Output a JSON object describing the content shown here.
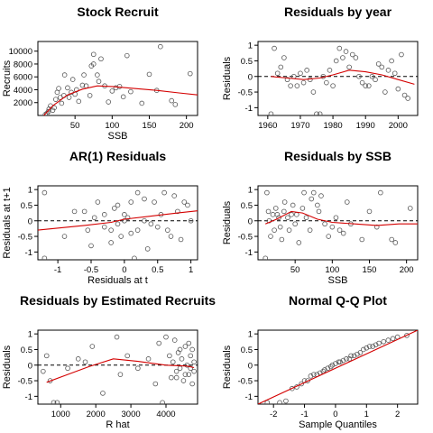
{
  "colors": {
    "points": "#555555",
    "smooth": "#d40000",
    "axis": "#000000"
  },
  "chart_data": [
    {
      "type": "scatter",
      "title": "Stock Recruit",
      "xlabel": "SSB",
      "ylabel": "Recruits",
      "xlim": [
        0,
        215
      ],
      "ylim": [
        0,
        11500
      ],
      "xticks": [
        50,
        100,
        150,
        200
      ],
      "yticks": [
        2000,
        4000,
        6000,
        8000,
        10000
      ],
      "reference_line": null,
      "points": [
        [
          10,
          150
        ],
        [
          12,
          300
        ],
        [
          14,
          600
        ],
        [
          15,
          1000
        ],
        [
          17,
          1500
        ],
        [
          20,
          800
        ],
        [
          22,
          1200
        ],
        [
          24,
          2500
        ],
        [
          26,
          3600
        ],
        [
          28,
          4200
        ],
        [
          30,
          2800
        ],
        [
          32,
          1900
        ],
        [
          35,
          3100
        ],
        [
          36,
          6300
        ],
        [
          40,
          4300
        ],
        [
          42,
          2800
        ],
        [
          45,
          3600
        ],
        [
          47,
          5600
        ],
        [
          50,
          3300
        ],
        [
          52,
          4000
        ],
        [
          55,
          2200
        ],
        [
          60,
          4700
        ],
        [
          62,
          6300
        ],
        [
          65,
          4600
        ],
        [
          70,
          3100
        ],
        [
          72,
          7700
        ],
        [
          75,
          9500
        ],
        [
          75,
          8000
        ],
        [
          80,
          6300
        ],
        [
          82,
          5300
        ],
        [
          85,
          8800
        ],
        [
          90,
          4600
        ],
        [
          95,
          2100
        ],
        [
          100,
          3800
        ],
        [
          105,
          4300
        ],
        [
          110,
          4500
        ],
        [
          115,
          2900
        ],
        [
          120,
          9300
        ],
        [
          125,
          3700
        ],
        [
          140,
          1900
        ],
        [
          150,
          6400
        ],
        [
          160,
          3900
        ],
        [
          165,
          10700
        ],
        [
          180,
          2300
        ],
        [
          185,
          1700
        ],
        [
          205,
          6500
        ]
      ],
      "smooth": [
        [
          8,
          0
        ],
        [
          20,
          1500
        ],
        [
          40,
          3200
        ],
        [
          60,
          4100
        ],
        [
          80,
          4600
        ],
        [
          100,
          4500
        ],
        [
          130,
          4200
        ],
        [
          160,
          3900
        ],
        [
          190,
          3500
        ],
        [
          215,
          3200
        ]
      ]
    },
    {
      "type": "scatter",
      "title": "Residuals by year",
      "xlabel": "",
      "ylabel": "Residuals",
      "xlim": [
        1957,
        2006
      ],
      "ylim": [
        -1.25,
        1.12
      ],
      "xticks": [
        1960,
        1970,
        1980,
        1990,
        2000
      ],
      "yticks": [
        -1.0,
        -0.5,
        0.0,
        0.5,
        1.0
      ],
      "reference_line": 0,
      "points": [
        [
          1961,
          -1.2
        ],
        [
          1962,
          0.9
        ],
        [
          1963,
          0.1
        ],
        [
          1964,
          0.3
        ],
        [
          1965,
          0.6
        ],
        [
          1966,
          -0.1
        ],
        [
          1967,
          -0.3
        ],
        [
          1968,
          0.0
        ],
        [
          1969,
          -0.3
        ],
        [
          1970,
          0.1
        ],
        [
          1971,
          -0.2
        ],
        [
          1972,
          0.2
        ],
        [
          1973,
          -0.1
        ],
        [
          1974,
          -0.5
        ],
        [
          1975,
          -1.2
        ],
        [
          1976,
          -1.2
        ],
        [
          1977,
          0.0
        ],
        [
          1978,
          -0.2
        ],
        [
          1979,
          0.2
        ],
        [
          1980,
          -0.3
        ],
        [
          1981,
          0.5
        ],
        [
          1982,
          0.9
        ],
        [
          1983,
          0.6
        ],
        [
          1984,
          0.8
        ],
        [
          1985,
          0.3
        ],
        [
          1986,
          0.7
        ],
        [
          1987,
          0.6
        ],
        [
          1988,
          0.0
        ],
        [
          1989,
          -0.2
        ],
        [
          1990,
          -0.3
        ],
        [
          1991,
          -0.3
        ],
        [
          1992,
          0.0
        ],
        [
          1993,
          -0.1
        ],
        [
          1994,
          0.4
        ],
        [
          1995,
          0.3
        ],
        [
          1996,
          -0.5
        ],
        [
          1997,
          0.2
        ],
        [
          1998,
          0.5
        ],
        [
          1999,
          0.1
        ],
        [
          2000,
          -0.4
        ],
        [
          2001,
          0.7
        ],
        [
          2002,
          -0.6
        ],
        [
          2003,
          -0.7
        ]
      ],
      "smooth": [
        [
          1961,
          0.0
        ],
        [
          1966,
          -0.05
        ],
        [
          1971,
          -0.1
        ],
        [
          1976,
          -0.05
        ],
        [
          1980,
          0.05
        ],
        [
          1985,
          0.2
        ],
        [
          1990,
          0.15
        ],
        [
          1995,
          0.05
        ],
        [
          2000,
          -0.1
        ],
        [
          2005,
          -0.25
        ]
      ]
    },
    {
      "type": "scatter",
      "title": "AR(1) Residuals",
      "xlabel": "Residuals at t",
      "ylabel": "Residuals at t+1",
      "xlim": [
        -1.3,
        1.1
      ],
      "ylim": [
        -1.25,
        1.12
      ],
      "xticks": [
        -1.0,
        -0.5,
        0.0,
        0.5,
        1.0
      ],
      "yticks": [
        -1.0,
        -0.5,
        0.0,
        0.5,
        1.0
      ],
      "reference_line": 0,
      "points": [
        [
          -1.2,
          0.9
        ],
        [
          -1.2,
          -1.2
        ],
        [
          -0.9,
          -0.5
        ],
        [
          -0.6,
          0.3
        ],
        [
          -0.5,
          -0.8
        ],
        [
          -0.4,
          0.6
        ],
        [
          -0.3,
          0.2
        ],
        [
          -0.3,
          -0.2
        ],
        [
          -0.2,
          -0.3
        ],
        [
          -0.2,
          -0.7
        ],
        [
          -0.15,
          0.4
        ],
        [
          -0.1,
          0.5
        ],
        [
          -0.1,
          -0.1
        ],
        [
          0.0,
          0.2
        ],
        [
          0.0,
          0.0
        ],
        [
          0.05,
          0.1
        ],
        [
          0.1,
          0.6
        ],
        [
          0.1,
          -0.4
        ],
        [
          0.2,
          0.9
        ],
        [
          0.2,
          -0.3
        ],
        [
          0.3,
          0.7
        ],
        [
          0.3,
          0.0
        ],
        [
          0.4,
          -0.1
        ],
        [
          0.5,
          -0.2
        ],
        [
          0.55,
          0.2
        ],
        [
          0.6,
          0.9
        ],
        [
          0.65,
          -0.3
        ],
        [
          0.7,
          -0.5
        ],
        [
          0.75,
          0.8
        ],
        [
          0.8,
          0.3
        ],
        [
          0.85,
          -0.6
        ],
        [
          0.9,
          0.6
        ],
        [
          0.95,
          0.5
        ],
        [
          1.0,
          0.0
        ],
        [
          -0.55,
          -0.3
        ],
        [
          -0.45,
          0.1
        ],
        [
          0.35,
          -0.9
        ],
        [
          0.15,
          -1.2
        ],
        [
          -0.75,
          0.3
        ],
        [
          -0.05,
          -0.5
        ],
        [
          0.45,
          0.6
        ]
      ],
      "smooth": [
        [
          -1.3,
          -0.3
        ],
        [
          -0.6,
          -0.15
        ],
        [
          -0.2,
          -0.05
        ],
        [
          0.0,
          0.05
        ],
        [
          0.4,
          0.15
        ],
        [
          0.8,
          0.25
        ],
        [
          1.1,
          0.32
        ]
      ]
    },
    {
      "type": "scatter",
      "title": "Residuals by SSB",
      "xlabel": "SSB",
      "ylabel": "Residuals",
      "xlim": [
        0,
        215
      ],
      "ylim": [
        -1.25,
        1.12
      ],
      "xticks": [
        50,
        100,
        150,
        200
      ],
      "yticks": [
        -1.0,
        -0.5,
        0.0,
        0.5,
        1.0
      ],
      "reference_line": 0,
      "points": [
        [
          10,
          -1.2
        ],
        [
          12,
          0.9
        ],
        [
          14,
          0.3
        ],
        [
          15,
          0.0
        ],
        [
          17,
          -0.5
        ],
        [
          20,
          0.2
        ],
        [
          22,
          -0.3
        ],
        [
          24,
          0.4
        ],
        [
          26,
          0.2
        ],
        [
          28,
          0.1
        ],
        [
          30,
          -0.2
        ],
        [
          32,
          -0.6
        ],
        [
          35,
          0.3
        ],
        [
          36,
          0.6
        ],
        [
          40,
          0.1
        ],
        [
          42,
          -0.3
        ],
        [
          45,
          0.2
        ],
        [
          47,
          0.5
        ],
        [
          50,
          -0.1
        ],
        [
          52,
          0.2
        ],
        [
          55,
          -0.7
        ],
        [
          60,
          0.4
        ],
        [
          62,
          0.9
        ],
        [
          65,
          0.1
        ],
        [
          70,
          -0.3
        ],
        [
          72,
          0.7
        ],
        [
          75,
          0.9
        ],
        [
          80,
          0.5
        ],
        [
          82,
          0.3
        ],
        [
          85,
          0.8
        ],
        [
          90,
          -0.1
        ],
        [
          95,
          -0.5
        ],
        [
          100,
          -0.2
        ],
        [
          105,
          0.1
        ],
        [
          110,
          -0.3
        ],
        [
          115,
          -0.4
        ],
        [
          120,
          0.6
        ],
        [
          125,
          -0.1
        ],
        [
          140,
          -0.6
        ],
        [
          150,
          0.3
        ],
        [
          160,
          -0.2
        ],
        [
          165,
          0.9
        ],
        [
          180,
          -0.6
        ],
        [
          185,
          -0.7
        ],
        [
          205,
          0.4
        ]
      ],
      "smooth": [
        [
          10,
          -0.1
        ],
        [
          25,
          0.05
        ],
        [
          45,
          0.3
        ],
        [
          60,
          0.25
        ],
        [
          80,
          0.05
        ],
        [
          100,
          -0.05
        ],
        [
          130,
          -0.1
        ],
        [
          160,
          -0.15
        ],
        [
          190,
          -0.1
        ],
        [
          215,
          -0.1
        ]
      ]
    },
    {
      "type": "scatter",
      "title": "Residuals by Estimated Recruits",
      "xlabel": "R hat",
      "ylabel": "Residuals",
      "xlim": [
        350,
        4900
      ],
      "ylim": [
        -1.25,
        1.12
      ],
      "xticks": [
        1000,
        2000,
        3000,
        4000
      ],
      "yticks": [
        -1.0,
        -0.5,
        0.0,
        0.5,
        1.0
      ],
      "reference_line": 0,
      "points": [
        [
          500,
          -0.2
        ],
        [
          600,
          0.3
        ],
        [
          700,
          -0.5
        ],
        [
          800,
          -1.2
        ],
        [
          900,
          -1.2
        ],
        [
          1200,
          -0.1
        ],
        [
          1500,
          0.2
        ],
        [
          1700,
          0.1
        ],
        [
          1900,
          0.6
        ],
        [
          2200,
          -0.9
        ],
        [
          2600,
          0.9
        ],
        [
          2700,
          -0.3
        ],
        [
          2900,
          0.3
        ],
        [
          3200,
          -0.1
        ],
        [
          3500,
          0.2
        ],
        [
          3700,
          -0.6
        ],
        [
          3800,
          0.7
        ],
        [
          3900,
          -1.2
        ],
        [
          4000,
          0.9
        ],
        [
          4100,
          0.3
        ],
        [
          4150,
          -0.4
        ],
        [
          4200,
          0.1
        ],
        [
          4250,
          0.8
        ],
        [
          4300,
          -0.2
        ],
        [
          4350,
          0.4
        ],
        [
          4400,
          -0.1
        ],
        [
          4450,
          0.2
        ],
        [
          4500,
          -0.5
        ],
        [
          4550,
          0.6
        ],
        [
          4600,
          0.0
        ],
        [
          4650,
          -0.3
        ],
        [
          4700,
          0.3
        ],
        [
          4700,
          -0.1
        ],
        [
          4750,
          0.5
        ],
        [
          4750,
          -0.6
        ],
        [
          4800,
          0.1
        ],
        [
          4800,
          -0.2
        ],
        [
          4650,
          0.7
        ],
        [
          4550,
          -0.3
        ],
        [
          4400,
          0.5
        ],
        [
          4300,
          -0.4
        ]
      ],
      "smooth": [
        [
          600,
          -0.55
        ],
        [
          1200,
          -0.3
        ],
        [
          1800,
          -0.05
        ],
        [
          2500,
          0.2
        ],
        [
          3200,
          0.12
        ],
        [
          4000,
          0.0
        ],
        [
          4600,
          -0.03
        ],
        [
          4800,
          -0.08
        ]
      ]
    },
    {
      "type": "scatter",
      "title": "Normal Q-Q Plot",
      "xlabel": "Sample Quantiles",
      "ylabel": "Residuals",
      "xlim": [
        -2.5,
        2.65
      ],
      "ylim": [
        -1.25,
        1.12
      ],
      "xticks": [
        -2,
        -1,
        0,
        1,
        2
      ],
      "yticks": [
        -1.0,
        -0.5,
        0.0,
        0.5,
        1.0
      ],
      "reference_line": null,
      "qq_line": [
        [
          -2.5,
          -1.25
        ],
        [
          2.65,
          1.12
        ]
      ],
      "points": [
        [
          -2.2,
          -1.2
        ],
        [
          -1.8,
          -1.2
        ],
        [
          -1.6,
          -1.15
        ],
        [
          -1.4,
          -0.75
        ],
        [
          -1.25,
          -0.7
        ],
        [
          -1.1,
          -0.6
        ],
        [
          -1.0,
          -0.5
        ],
        [
          -0.9,
          -0.5
        ],
        [
          -0.8,
          -0.35
        ],
        [
          -0.7,
          -0.3
        ],
        [
          -0.6,
          -0.3
        ],
        [
          -0.5,
          -0.25
        ],
        [
          -0.4,
          -0.2
        ],
        [
          -0.35,
          -0.15
        ],
        [
          -0.25,
          -0.1
        ],
        [
          -0.15,
          -0.05
        ],
        [
          -0.1,
          0.0
        ],
        [
          0.0,
          0.05
        ],
        [
          0.1,
          0.1
        ],
        [
          0.15,
          0.1
        ],
        [
          0.25,
          0.15
        ],
        [
          0.35,
          0.2
        ],
        [
          0.45,
          0.2
        ],
        [
          0.5,
          0.3
        ],
        [
          0.6,
          0.3
        ],
        [
          0.7,
          0.35
        ],
        [
          0.8,
          0.4
        ],
        [
          0.9,
          0.5
        ],
        [
          1.0,
          0.55
        ],
        [
          1.1,
          0.6
        ],
        [
          1.2,
          0.6
        ],
        [
          1.3,
          0.65
        ],
        [
          1.4,
          0.7
        ],
        [
          1.55,
          0.75
        ],
        [
          1.7,
          0.8
        ],
        [
          1.85,
          0.85
        ],
        [
          2.0,
          0.9
        ],
        [
          2.3,
          0.95
        ]
      ]
    }
  ]
}
